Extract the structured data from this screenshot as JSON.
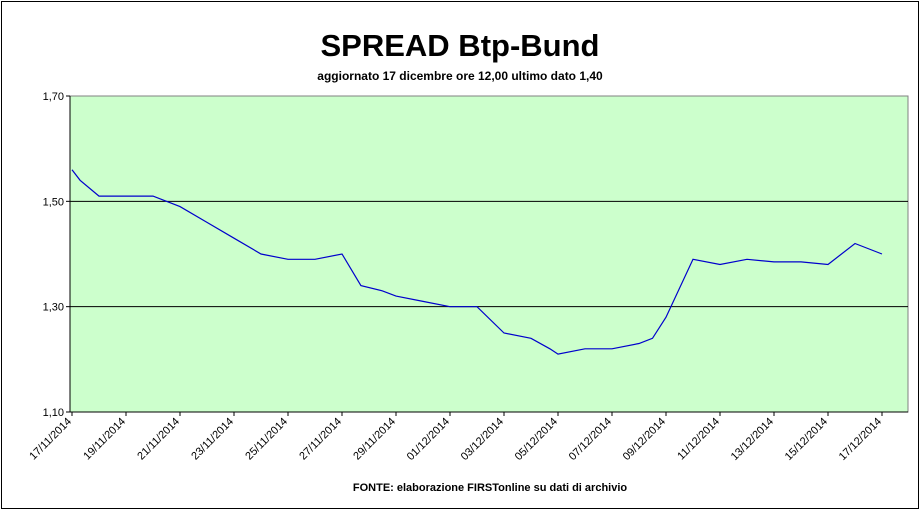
{
  "chart_data": {
    "type": "line",
    "title": "SPREAD Btp-Bund",
    "subtitle": "aggiornato 17 dicembre ore 12,00  ultimo dato  1,40",
    "source_note": "FONTE: elaborazione FIRSTonline su dati di archivio",
    "xlabel": "",
    "ylabel": "",
    "ylim": [
      1.1,
      1.7
    ],
    "y_ticks": [
      "1,10",
      "1,30",
      "1,50",
      "1,70"
    ],
    "y_tick_values": [
      1.1,
      1.3,
      1.5,
      1.7
    ],
    "x_tick_labels": [
      "17/11/2014",
      "19/11/2014",
      "21/11/2014",
      "23/11/2014",
      "25/11/2014",
      "27/11/2014",
      "29/11/2014",
      "01/12/2014",
      "03/12/2014",
      "05/12/2014",
      "07/12/2014",
      "09/12/2014",
      "11/12/2014",
      "13/12/2014",
      "15/12/2014",
      "17/12/2014"
    ],
    "grid": "horizontal",
    "plot_background": "#ccffcc",
    "line_color": "#0000cc",
    "series": [
      {
        "x": [
          "17/11/2014",
          "17/11/2014",
          "18/11/2014",
          "19/11/2014",
          "20/11/2014",
          "21/11/2014",
          "22/11/2014",
          "23/11/2014",
          "24/11/2014",
          "25/11/2014",
          "26/11/2014",
          "27/11/2014",
          "27/11/2014",
          "28/11/2014",
          "29/11/2014",
          "30/11/2014",
          "01/12/2014",
          "02/12/2014",
          "03/12/2014",
          "04/12/2014",
          "05/12/2014",
          "05/12/2014",
          "06/12/2014",
          "07/12/2014",
          "08/12/2014",
          "09/12/2014",
          "09/12/2014",
          "10/12/2014",
          "11/12/2014",
          "12/12/2014",
          "13/12/2014",
          "14/12/2014",
          "15/12/2014",
          "16/12/2014",
          "17/12/2014"
        ],
        "y": [
          1.56,
          1.54,
          1.51,
          1.51,
          1.51,
          1.49,
          1.46,
          1.43,
          1.4,
          1.39,
          1.39,
          1.4,
          1.34,
          1.33,
          1.32,
          1.31,
          1.3,
          1.3,
          1.25,
          1.24,
          1.22,
          1.21,
          1.22,
          1.22,
          1.23,
          1.24,
          1.28,
          1.39,
          1.38,
          1.39,
          1.385,
          1.385,
          1.38,
          1.42,
          1.4
        ],
        "x_index": [
          0,
          0.3,
          1,
          2,
          3,
          4,
          5,
          6,
          7,
          8,
          9,
          10,
          10.7,
          11.5,
          12,
          13,
          14,
          15,
          16,
          17,
          17.7,
          18,
          19,
          20,
          21,
          21.5,
          22,
          23,
          24,
          25,
          26,
          27,
          28,
          29,
          30
        ]
      }
    ]
  }
}
